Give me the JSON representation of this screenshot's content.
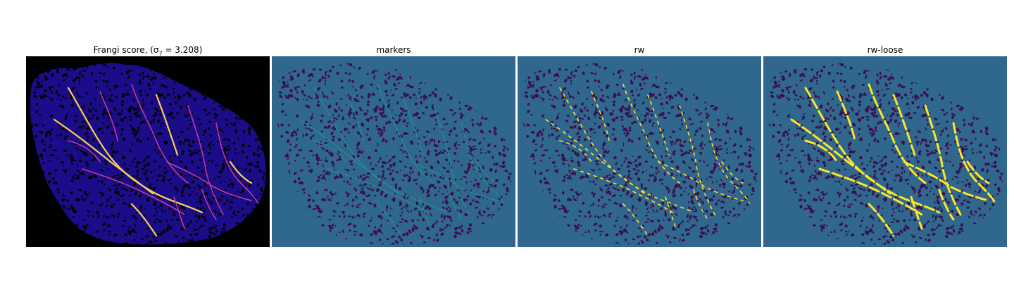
{
  "panels": [
    {
      "title": "Frangi score, (σ₇ = 3.208)",
      "colormap": "plasma",
      "background": "#000000",
      "tissue": "#1b0c8a",
      "pores": "#05030a",
      "vessel": "#c03a9b",
      "highlight": "#f9d05a"
    },
    {
      "title": "markers",
      "colormap": "viridis",
      "background": "#30678d",
      "tissue": "#30678d",
      "pores": "#3b0f4f",
      "vessel": "#21918c",
      "highlight": "#21918c"
    },
    {
      "title": "rw",
      "colormap": "viridis",
      "background": "#30678d",
      "tissue": "#30678d",
      "pores": "#3b0f4f",
      "vessel": "#21918c",
      "highlight": "#fde725"
    },
    {
      "title": "rw-loose",
      "colormap": "viridis",
      "background": "#30678d",
      "tissue": "#30678d",
      "pores": "#3b0f4f",
      "vessel": "#21918c",
      "highlight": "#fde725"
    }
  ]
}
